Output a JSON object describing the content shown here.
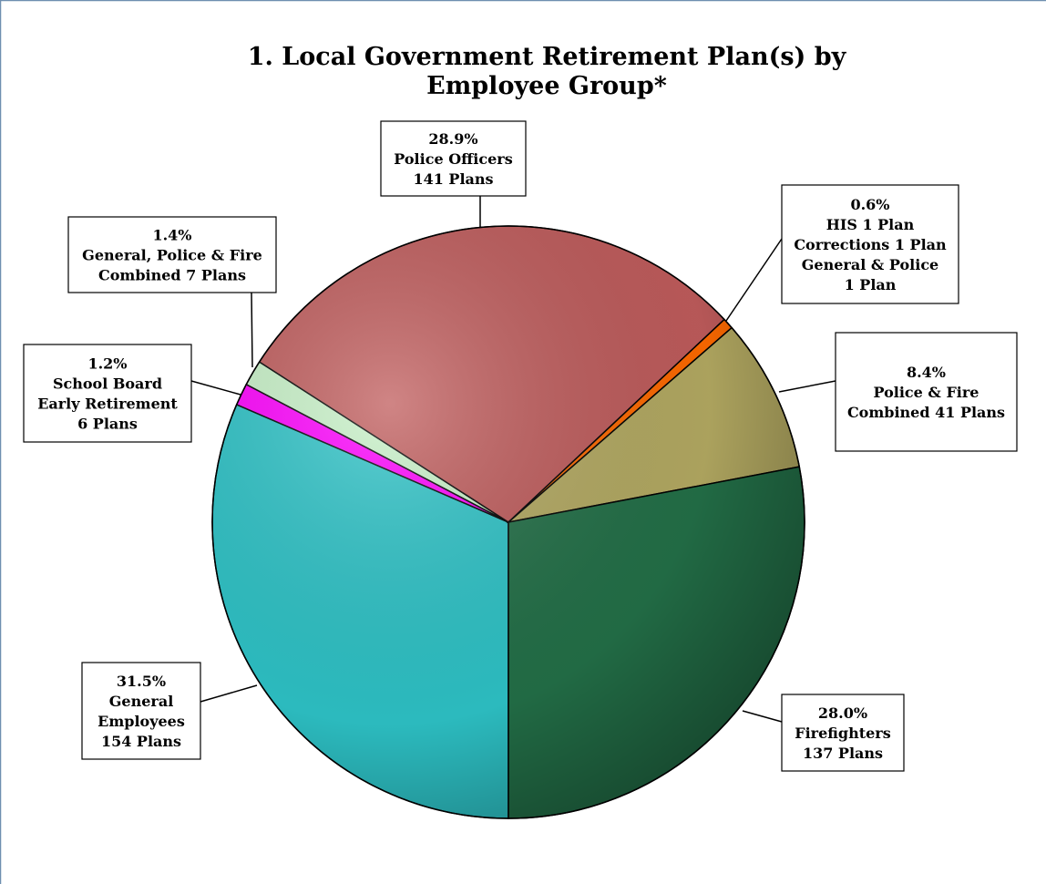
{
  "chart_data": {
    "type": "pie",
    "title": "1.  Local Government Retirement Plan(s) by",
    "subtitle": "Employee Group*",
    "categories": [
      "General\nEmployees\n154 Plans",
      "School Board\nEarly Retirement\n6 Plans",
      "General, Police & Fire\nCombined 7 Plans",
      "Police Officers\n141 Plans",
      "HIS 1 Plan\nCorrections 1 Plan\nGeneral & Police\n1 Plan",
      "Police & Fire\nCombined 41 Plans",
      "Firefighters\n137 Plans"
    ],
    "values": [
      31.5,
      1.2,
      1.4,
      28.9,
      0.6,
      8.4,
      28.0
    ],
    "value_labels": [
      "31.5%",
      "1.2%",
      "1.4%",
      "28.9%",
      "0.6%",
      "8.4%",
      "28.0%"
    ],
    "colors": [
      "#2ec4c8",
      "#ff00ff",
      "#c8f2c8",
      "#c05c5c",
      "#ff6a00",
      "#b4aa62",
      "#237048"
    ]
  }
}
